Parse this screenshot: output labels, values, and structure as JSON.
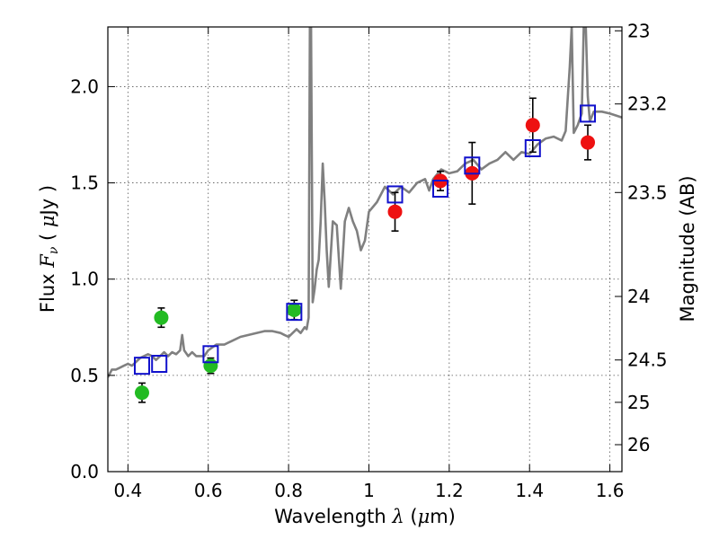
{
  "chart_data": {
    "type": "scatter",
    "xlabel": "Wavelength  λ (μm)",
    "ylabel": "Flux  F_ν  ( μJy )",
    "ylabel_right": "Magnitude (AB)",
    "xlim": [
      0.35,
      1.63
    ],
    "ylim": [
      0.0,
      2.31
    ],
    "x_ticks": [
      0.4,
      0.6,
      0.8,
      1.0,
      1.2,
      1.4,
      1.6
    ],
    "x_tick_labels": [
      "0.4",
      "0.6",
      "0.8",
      "1",
      "1.2",
      "1.4",
      "1.6"
    ],
    "y_ticks": [
      0.0,
      0.5,
      1.0,
      1.5,
      2.0
    ],
    "y_tick_labels": [
      "0.0",
      "0.5",
      "1.0",
      "1.5",
      "2.0"
    ],
    "right_ticks": [
      {
        "label": "23",
        "flux": 2.29
      },
      {
        "label": "23.2",
        "flux": 1.91
      },
      {
        "label": "23.5",
        "flux": 1.45
      },
      {
        "label": "24",
        "flux": 0.91
      },
      {
        "label": "24.5",
        "flux": 0.58
      },
      {
        "label": "25",
        "flux": 0.36
      },
      {
        "label": "26",
        "flux": 0.14
      }
    ],
    "grid": true,
    "series": [
      {
        "name": "model_spectrum",
        "kind": "line",
        "color": "#808080",
        "x": [
          0.35,
          0.36,
          0.37,
          0.38,
          0.39,
          0.4,
          0.41,
          0.42,
          0.43,
          0.44,
          0.45,
          0.46,
          0.47,
          0.48,
          0.49,
          0.5,
          0.51,
          0.52,
          0.53,
          0.535,
          0.54,
          0.55,
          0.56,
          0.57,
          0.58,
          0.59,
          0.6,
          0.62,
          0.64,
          0.66,
          0.68,
          0.7,
          0.72,
          0.74,
          0.76,
          0.78,
          0.79,
          0.8,
          0.81,
          0.82,
          0.83,
          0.84,
          0.845,
          0.85,
          0.853,
          0.856,
          0.86,
          0.865,
          0.87,
          0.875,
          0.88,
          0.885,
          0.89,
          0.895,
          0.9,
          0.91,
          0.92,
          0.93,
          0.94,
          0.95,
          0.96,
          0.97,
          0.98,
          0.99,
          1.0,
          1.02,
          1.04,
          1.06,
          1.08,
          1.1,
          1.12,
          1.14,
          1.15,
          1.16,
          1.18,
          1.2,
          1.22,
          1.24,
          1.26,
          1.28,
          1.3,
          1.32,
          1.34,
          1.36,
          1.38,
          1.4,
          1.42,
          1.44,
          1.46,
          1.48,
          1.49,
          1.5,
          1.505,
          1.51,
          1.515,
          1.52,
          1.53,
          1.535,
          1.54,
          1.545,
          1.55,
          1.56,
          1.58,
          1.6,
          1.63
        ],
        "y": [
          0.49,
          0.53,
          0.53,
          0.54,
          0.55,
          0.56,
          0.55,
          0.57,
          0.59,
          0.6,
          0.61,
          0.6,
          0.58,
          0.6,
          0.62,
          0.6,
          0.62,
          0.61,
          0.63,
          0.71,
          0.63,
          0.6,
          0.62,
          0.6,
          0.6,
          0.6,
          0.63,
          0.66,
          0.66,
          0.68,
          0.7,
          0.71,
          0.72,
          0.73,
          0.73,
          0.72,
          0.71,
          0.7,
          0.72,
          0.74,
          0.72,
          0.75,
          0.74,
          0.8,
          2.31,
          2.31,
          0.88,
          0.95,
          1.05,
          1.1,
          1.3,
          1.6,
          1.4,
          1.15,
          0.96,
          1.3,
          1.28,
          0.95,
          1.3,
          1.37,
          1.3,
          1.25,
          1.15,
          1.2,
          1.35,
          1.4,
          1.48,
          1.44,
          1.48,
          1.45,
          1.5,
          1.52,
          1.46,
          1.52,
          1.57,
          1.55,
          1.56,
          1.6,
          1.62,
          1.57,
          1.6,
          1.62,
          1.66,
          1.62,
          1.66,
          1.65,
          1.7,
          1.73,
          1.74,
          1.72,
          1.77,
          2.1,
          2.31,
          1.76,
          1.78,
          1.8,
          1.86,
          2.31,
          2.31,
          1.95,
          1.82,
          1.87,
          1.87,
          1.86,
          1.84
        ]
      },
      {
        "name": "green_observed",
        "kind": "errorbar",
        "color": "#22bb22",
        "x": [
          0.435,
          0.483,
          0.606,
          0.814
        ],
        "y": [
          0.41,
          0.8,
          0.55,
          0.84
        ],
        "err": [
          0.05,
          0.05,
          0.04,
          0.05
        ]
      },
      {
        "name": "red_observed",
        "kind": "errorbar",
        "color": "#ee1111",
        "x": [
          1.065,
          1.178,
          1.257,
          1.408,
          1.545
        ],
        "y": [
          1.35,
          1.51,
          1.55,
          1.8,
          1.71
        ],
        "err": [
          0.1,
          0.05,
          0.16,
          0.14,
          0.09
        ]
      },
      {
        "name": "model_photometry",
        "kind": "open_square",
        "color": "#1111cc",
        "x": [
          0.435,
          0.478,
          0.606,
          0.814,
          1.065,
          1.178,
          1.257,
          1.408,
          1.545
        ],
        "y": [
          0.55,
          0.56,
          0.61,
          0.83,
          1.44,
          1.47,
          1.59,
          1.68,
          1.86
        ]
      }
    ]
  }
}
